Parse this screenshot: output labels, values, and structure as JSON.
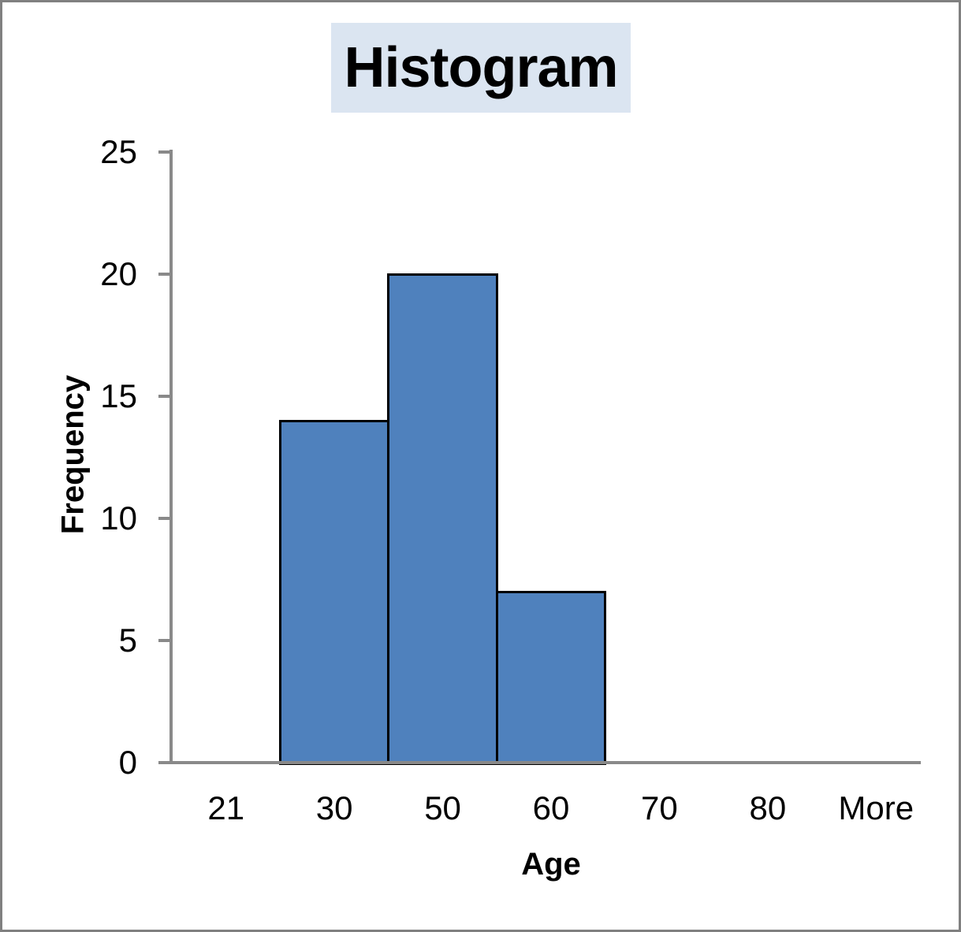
{
  "frame": {
    "background": "#ffffff",
    "border_color": "#808080"
  },
  "chart_data": {
    "type": "bar",
    "variant": "histogram",
    "title": "Histogram",
    "xlabel": "Age",
    "ylabel": "Frequency",
    "categories": [
      "21",
      "30",
      "50",
      "60",
      "70",
      "80",
      "More"
    ],
    "values": [
      0,
      14,
      20,
      7,
      0,
      0,
      0
    ],
    "ylim": [
      0,
      25
    ],
    "yticks": [
      0,
      5,
      10,
      15,
      20,
      25
    ],
    "grid": false,
    "legend": "none",
    "gap_width_percent": 0,
    "colors": {
      "bar_fill": "#4F81BD",
      "bar_border": "#000000",
      "axis_line": "#898989",
      "title_background": "#DBE5F1",
      "text": "#000000"
    }
  }
}
